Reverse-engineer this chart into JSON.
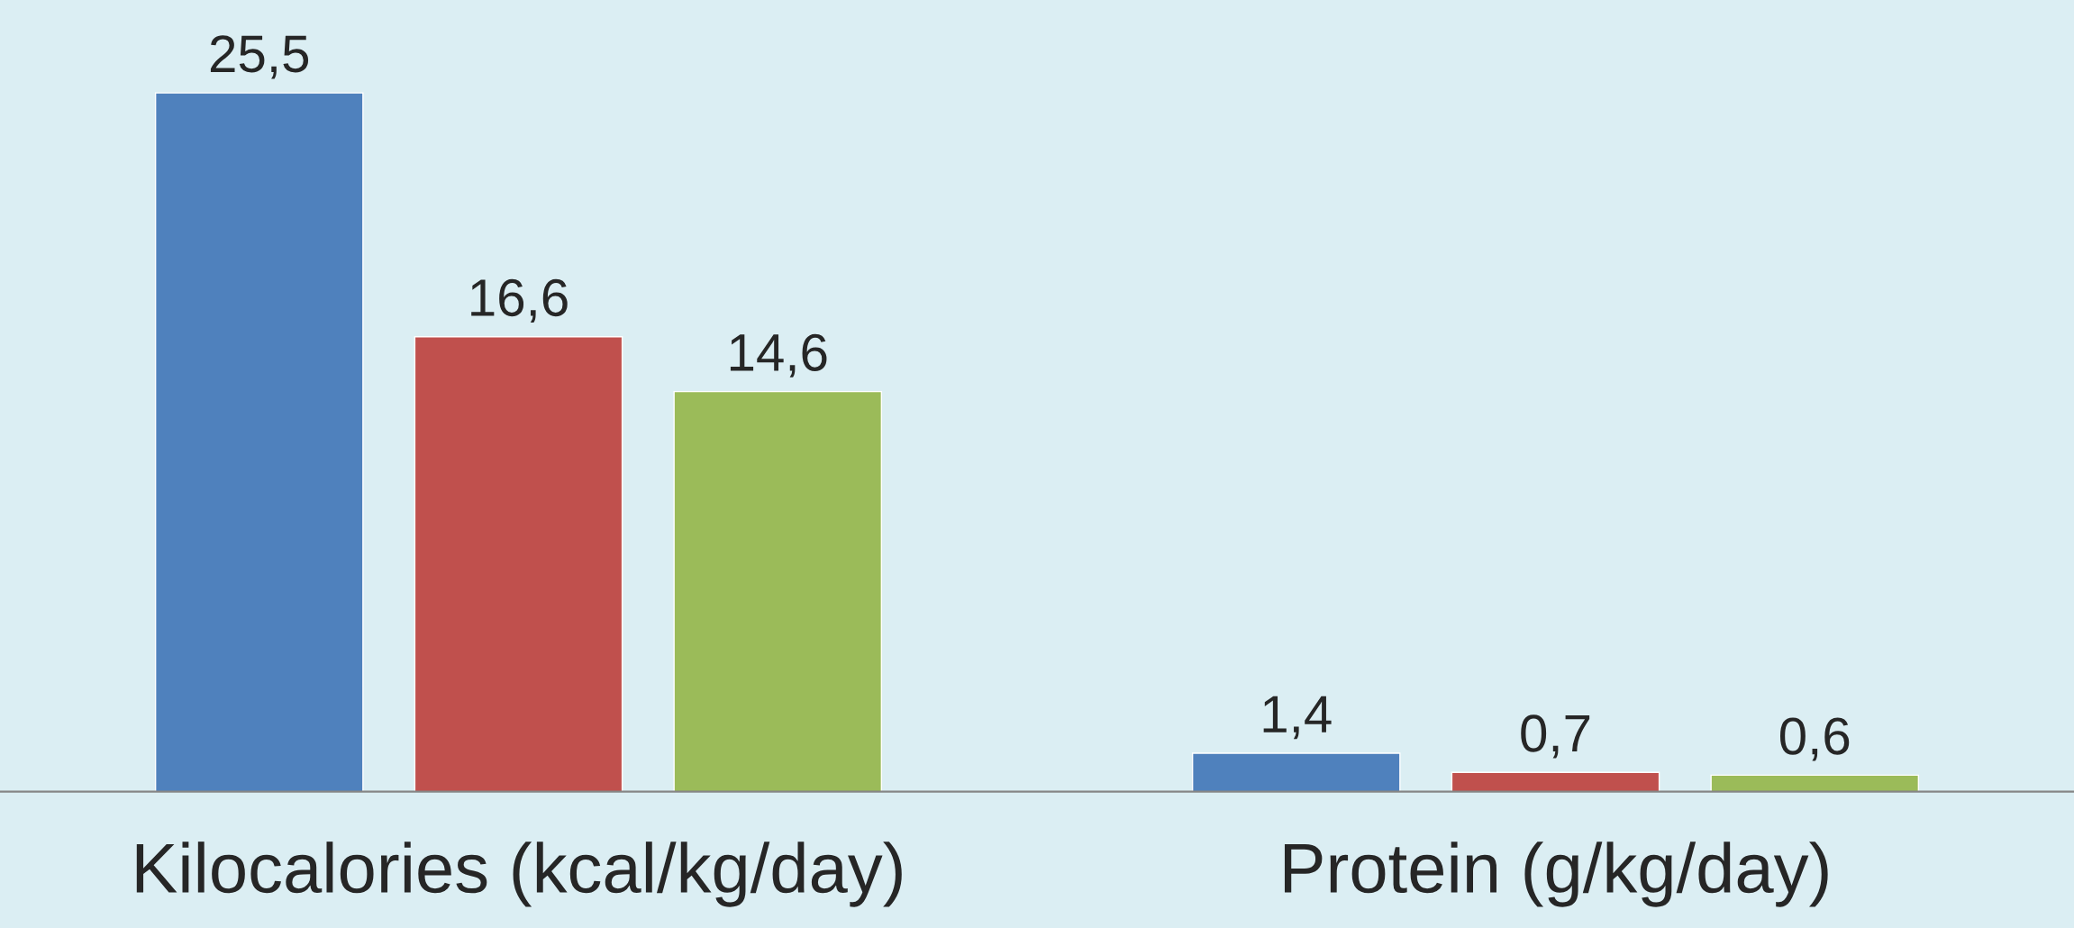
{
  "chart_data": {
    "type": "bar",
    "categories": [
      "Kilocalories (kcal/kg/day)",
      "Protein (g/kg/day)"
    ],
    "series": [
      {
        "color": "#4f81bd",
        "values": [
          25.5,
          1.4
        ],
        "value_labels": [
          "25,5",
          "1,4"
        ]
      },
      {
        "color": "#c0504d",
        "values": [
          16.6,
          0.7
        ],
        "value_labels": [
          "16,6",
          "0,7"
        ]
      },
      {
        "color": "#9bbb59",
        "values": [
          14.6,
          0.6
        ],
        "value_labels": [
          "14,6",
          "0,6"
        ]
      }
    ],
    "tick_labels": "x",
    "grid": false,
    "legend": false
  }
}
